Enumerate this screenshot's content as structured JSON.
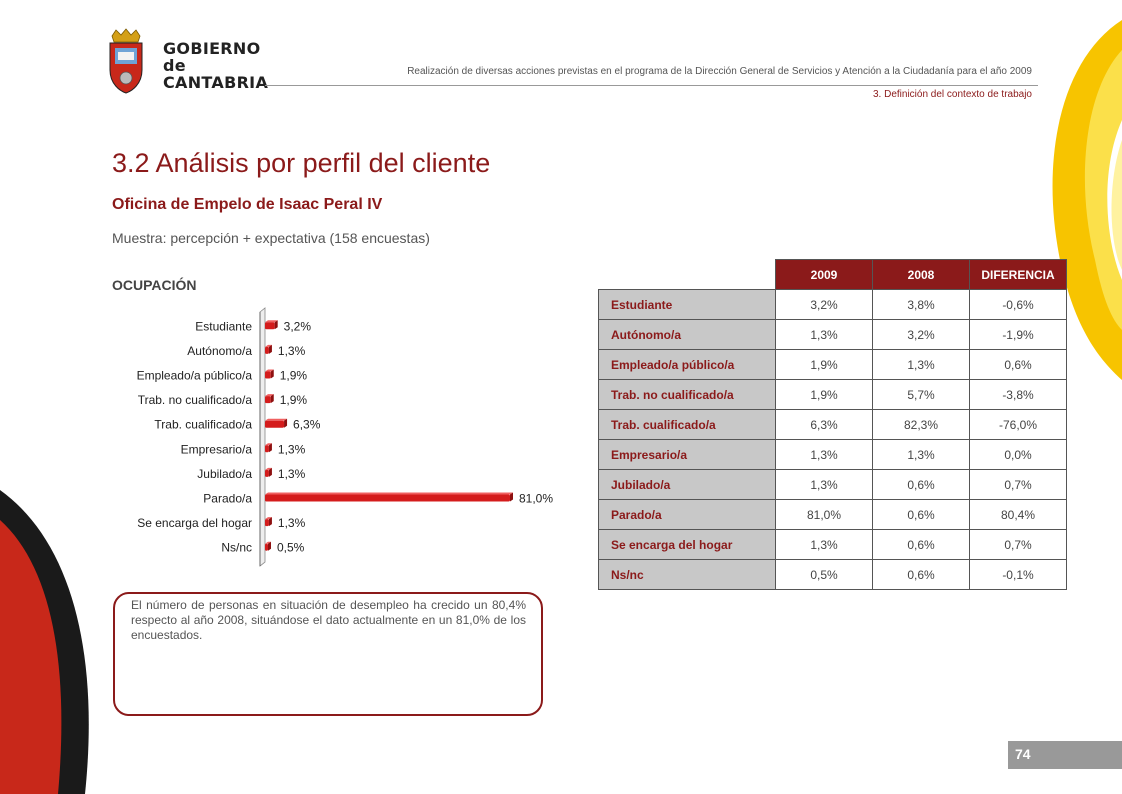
{
  "header": {
    "logo_lines": [
      "GOBIERNO",
      "de",
      "CANTABRIA"
    ],
    "doc_title": "Realización de diversas acciones previstas en el programa de la Dirección General de Servicios y Atención a la Ciudadanía para el año 2009",
    "section_ref": "3. Definición del contexto de trabajo"
  },
  "page": {
    "title": "3.2 Análisis por perfil del cliente",
    "subtitle": "Oficina de Empelo de Isaac Peral IV",
    "sample": "Muestra: percepción + expectativa (158 encuestas)",
    "section_label": "OCUPACIÓN",
    "note": "El número de personas en situación de desempleo ha crecido un 80,4% respecto al año 2008, situándose el dato actualmente en un 81,0% de los encuestados.",
    "page_number": "74"
  },
  "colors": {
    "brand": "#8b1a1a",
    "bar": "#d41c1c",
    "accent_yellow": "#f7c400"
  },
  "chart_data": {
    "type": "bar",
    "orientation": "horizontal",
    "categories": [
      "Estudiante",
      "Autónomo/a",
      "Empleado/a público/a",
      "Trab. no cualificado/a",
      "Trab. cualificado/a",
      "Empresario/a",
      "Jubilado/a",
      "Parado/a",
      "Se encarga del hogar",
      "Ns/nc"
    ],
    "values": [
      3.2,
      1.3,
      1.9,
      1.9,
      6.3,
      1.3,
      1.3,
      81.0,
      1.3,
      0.5
    ],
    "labels": [
      "3,2%",
      "1,3%",
      "1,9%",
      "1,9%",
      "6,3%",
      "1,3%",
      "1,3%",
      "81,0%",
      "1,3%",
      "0,5%"
    ],
    "xlim": [
      0,
      81
    ]
  },
  "table": {
    "headers": [
      "2009",
      "2008",
      "DIFERENCIA"
    ],
    "rows": [
      {
        "label": "Estudiante",
        "v2009": "3,2%",
        "v2008": "3,8%",
        "diff": "-0,6%"
      },
      {
        "label": "Autónomo/a",
        "v2009": "1,3%",
        "v2008": "3,2%",
        "diff": "-1,9%"
      },
      {
        "label": "Empleado/a público/a",
        "v2009": "1,9%",
        "v2008": "1,3%",
        "diff": "0,6%"
      },
      {
        "label": "Trab. no cualificado/a",
        "v2009": "1,9%",
        "v2008": "5,7%",
        "diff": "-3,8%"
      },
      {
        "label": "Trab. cualificado/a",
        "v2009": "6,3%",
        "v2008": "82,3%",
        "diff": "-76,0%"
      },
      {
        "label": "Empresario/a",
        "v2009": "1,3%",
        "v2008": "1,3%",
        "diff": "0,0%"
      },
      {
        "label": "Jubilado/a",
        "v2009": "1,3%",
        "v2008": "0,6%",
        "diff": "0,7%"
      },
      {
        "label": "Parado/a",
        "v2009": "81,0%",
        "v2008": "0,6%",
        "diff": "80,4%"
      },
      {
        "label": "Se encarga del hogar",
        "v2009": "1,3%",
        "v2008": "0,6%",
        "diff": "0,7%"
      },
      {
        "label": "Ns/nc",
        "v2009": "0,5%",
        "v2008": "0,6%",
        "diff": "-0,1%"
      }
    ]
  }
}
